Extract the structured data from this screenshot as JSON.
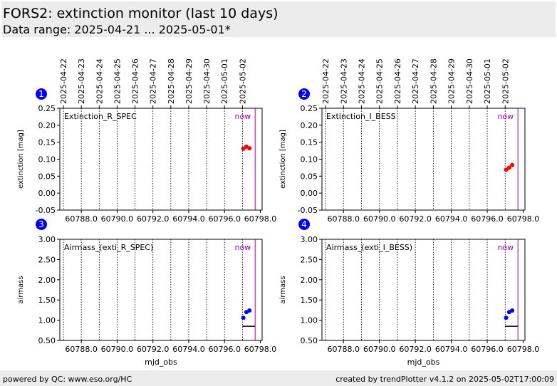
{
  "header": {
    "title": "FORS2: extinction monitor (last 10 days)",
    "subtitle": "Data range: 2025-04-21 ... 2025-05-01*"
  },
  "footer": {
    "left": "powered by QC: www.eso.org/HC",
    "right": "created by trendPlotter v4.1.2 on 2025-05-02T17:00:09"
  },
  "colors": {
    "extinction_points": "#ff0000",
    "airmass_points": "#0000ff",
    "now_line": "#aa00aa",
    "badge": "#0000ff"
  },
  "chart_data": [
    {
      "type": "scatter",
      "panel_number": "1",
      "label": "Extinction_R_SPEC",
      "now_label": "now",
      "ylabel": "extinction [mag]",
      "xlabel": "",
      "xlim": [
        60786.8,
        60798.1
      ],
      "ylim": [
        -0.05,
        0.25
      ],
      "yticks": [
        -0.05,
        0.0,
        0.05,
        0.1,
        0.15,
        0.2,
        0.25
      ],
      "xticks": [
        60788.0,
        60790.0,
        60792.0,
        60794.0,
        60796.0,
        60798.0
      ],
      "date_ticks": [
        "2025-04-22",
        "2025-04-23",
        "2025-04-24",
        "2025-04-25",
        "2025-04-26",
        "2025-04-27",
        "2025-04-28",
        "2025-04-29",
        "2025-04-30",
        "2025-05-01",
        "2025-05-02"
      ],
      "now_x": 60797.71,
      "series": [
        {
          "x": [
            60797.05,
            60797.22,
            60797.39
          ],
          "y": [
            0.131,
            0.137,
            0.132
          ]
        }
      ]
    },
    {
      "type": "scatter",
      "panel_number": "2",
      "label": "Extinction_I_BESS",
      "now_label": "now",
      "ylabel": "extinction [mag]",
      "xlabel": "",
      "xlim": [
        60786.8,
        60798.1
      ],
      "ylim": [
        -0.05,
        0.25
      ],
      "yticks": [
        -0.05,
        0.0,
        0.05,
        0.1,
        0.15,
        0.2,
        0.25
      ],
      "xticks": [
        60788.0,
        60790.0,
        60792.0,
        60794.0,
        60796.0,
        60798.0
      ],
      "date_ticks": [
        "2025-04-22",
        "2025-04-23",
        "2025-04-24",
        "2025-04-25",
        "2025-04-26",
        "2025-04-27",
        "2025-04-28",
        "2025-04-29",
        "2025-04-30",
        "2025-05-01",
        "2025-05-02"
      ],
      "now_x": 60797.71,
      "series": [
        {
          "x": [
            60797.05,
            60797.22,
            60797.39
          ],
          "y": [
            0.069,
            0.075,
            0.083
          ]
        }
      ]
    },
    {
      "type": "scatter",
      "panel_number": "3",
      "label": "Airmass_(exti_R_SPEC)",
      "now_label": "now",
      "ylabel": "airmass",
      "xlabel": "mjd_obs",
      "xlim": [
        60786.8,
        60798.1
      ],
      "ylim": [
        0.5,
        3.0
      ],
      "yticks": [
        0.5,
        1.0,
        1.5,
        2.0,
        2.5,
        3.0
      ],
      "xticks": [
        60788.0,
        60790.0,
        60792.0,
        60794.0,
        60796.0,
        60798.0
      ],
      "date_ticks": [
        "2025-04-22",
        "2025-04-23",
        "2025-04-24",
        "2025-04-25",
        "2025-04-26",
        "2025-04-27",
        "2025-04-28",
        "2025-04-29",
        "2025-04-30",
        "2025-05-01",
        "2025-05-02"
      ],
      "now_x": 60797.71,
      "ref_line": {
        "x": [
          60797.0,
          60797.7
        ],
        "y": 0.85
      },
      "series": [
        {
          "x": [
            60797.05,
            60797.22,
            60797.39
          ],
          "y": [
            1.06,
            1.2,
            1.24
          ]
        }
      ]
    },
    {
      "type": "scatter",
      "panel_number": "4",
      "label": "Airmass_(exti_I_BESS)",
      "now_label": "now",
      "ylabel": "airmass",
      "xlabel": "mjd_obs",
      "xlim": [
        60786.8,
        60798.1
      ],
      "ylim": [
        0.5,
        3.0
      ],
      "yticks": [
        0.5,
        1.0,
        1.5,
        2.0,
        2.5,
        3.0
      ],
      "xticks": [
        60788.0,
        60790.0,
        60792.0,
        60794.0,
        60796.0,
        60798.0
      ],
      "date_ticks": [
        "2025-04-22",
        "2025-04-23",
        "2025-04-24",
        "2025-04-25",
        "2025-04-26",
        "2025-04-27",
        "2025-04-28",
        "2025-04-29",
        "2025-04-30",
        "2025-05-01",
        "2025-05-02"
      ],
      "now_x": 60797.71,
      "ref_line": {
        "x": [
          60797.0,
          60797.7
        ],
        "y": 0.85
      },
      "series": [
        {
          "x": [
            60797.05,
            60797.22,
            60797.39
          ],
          "y": [
            1.06,
            1.2,
            1.24
          ]
        }
      ]
    }
  ]
}
